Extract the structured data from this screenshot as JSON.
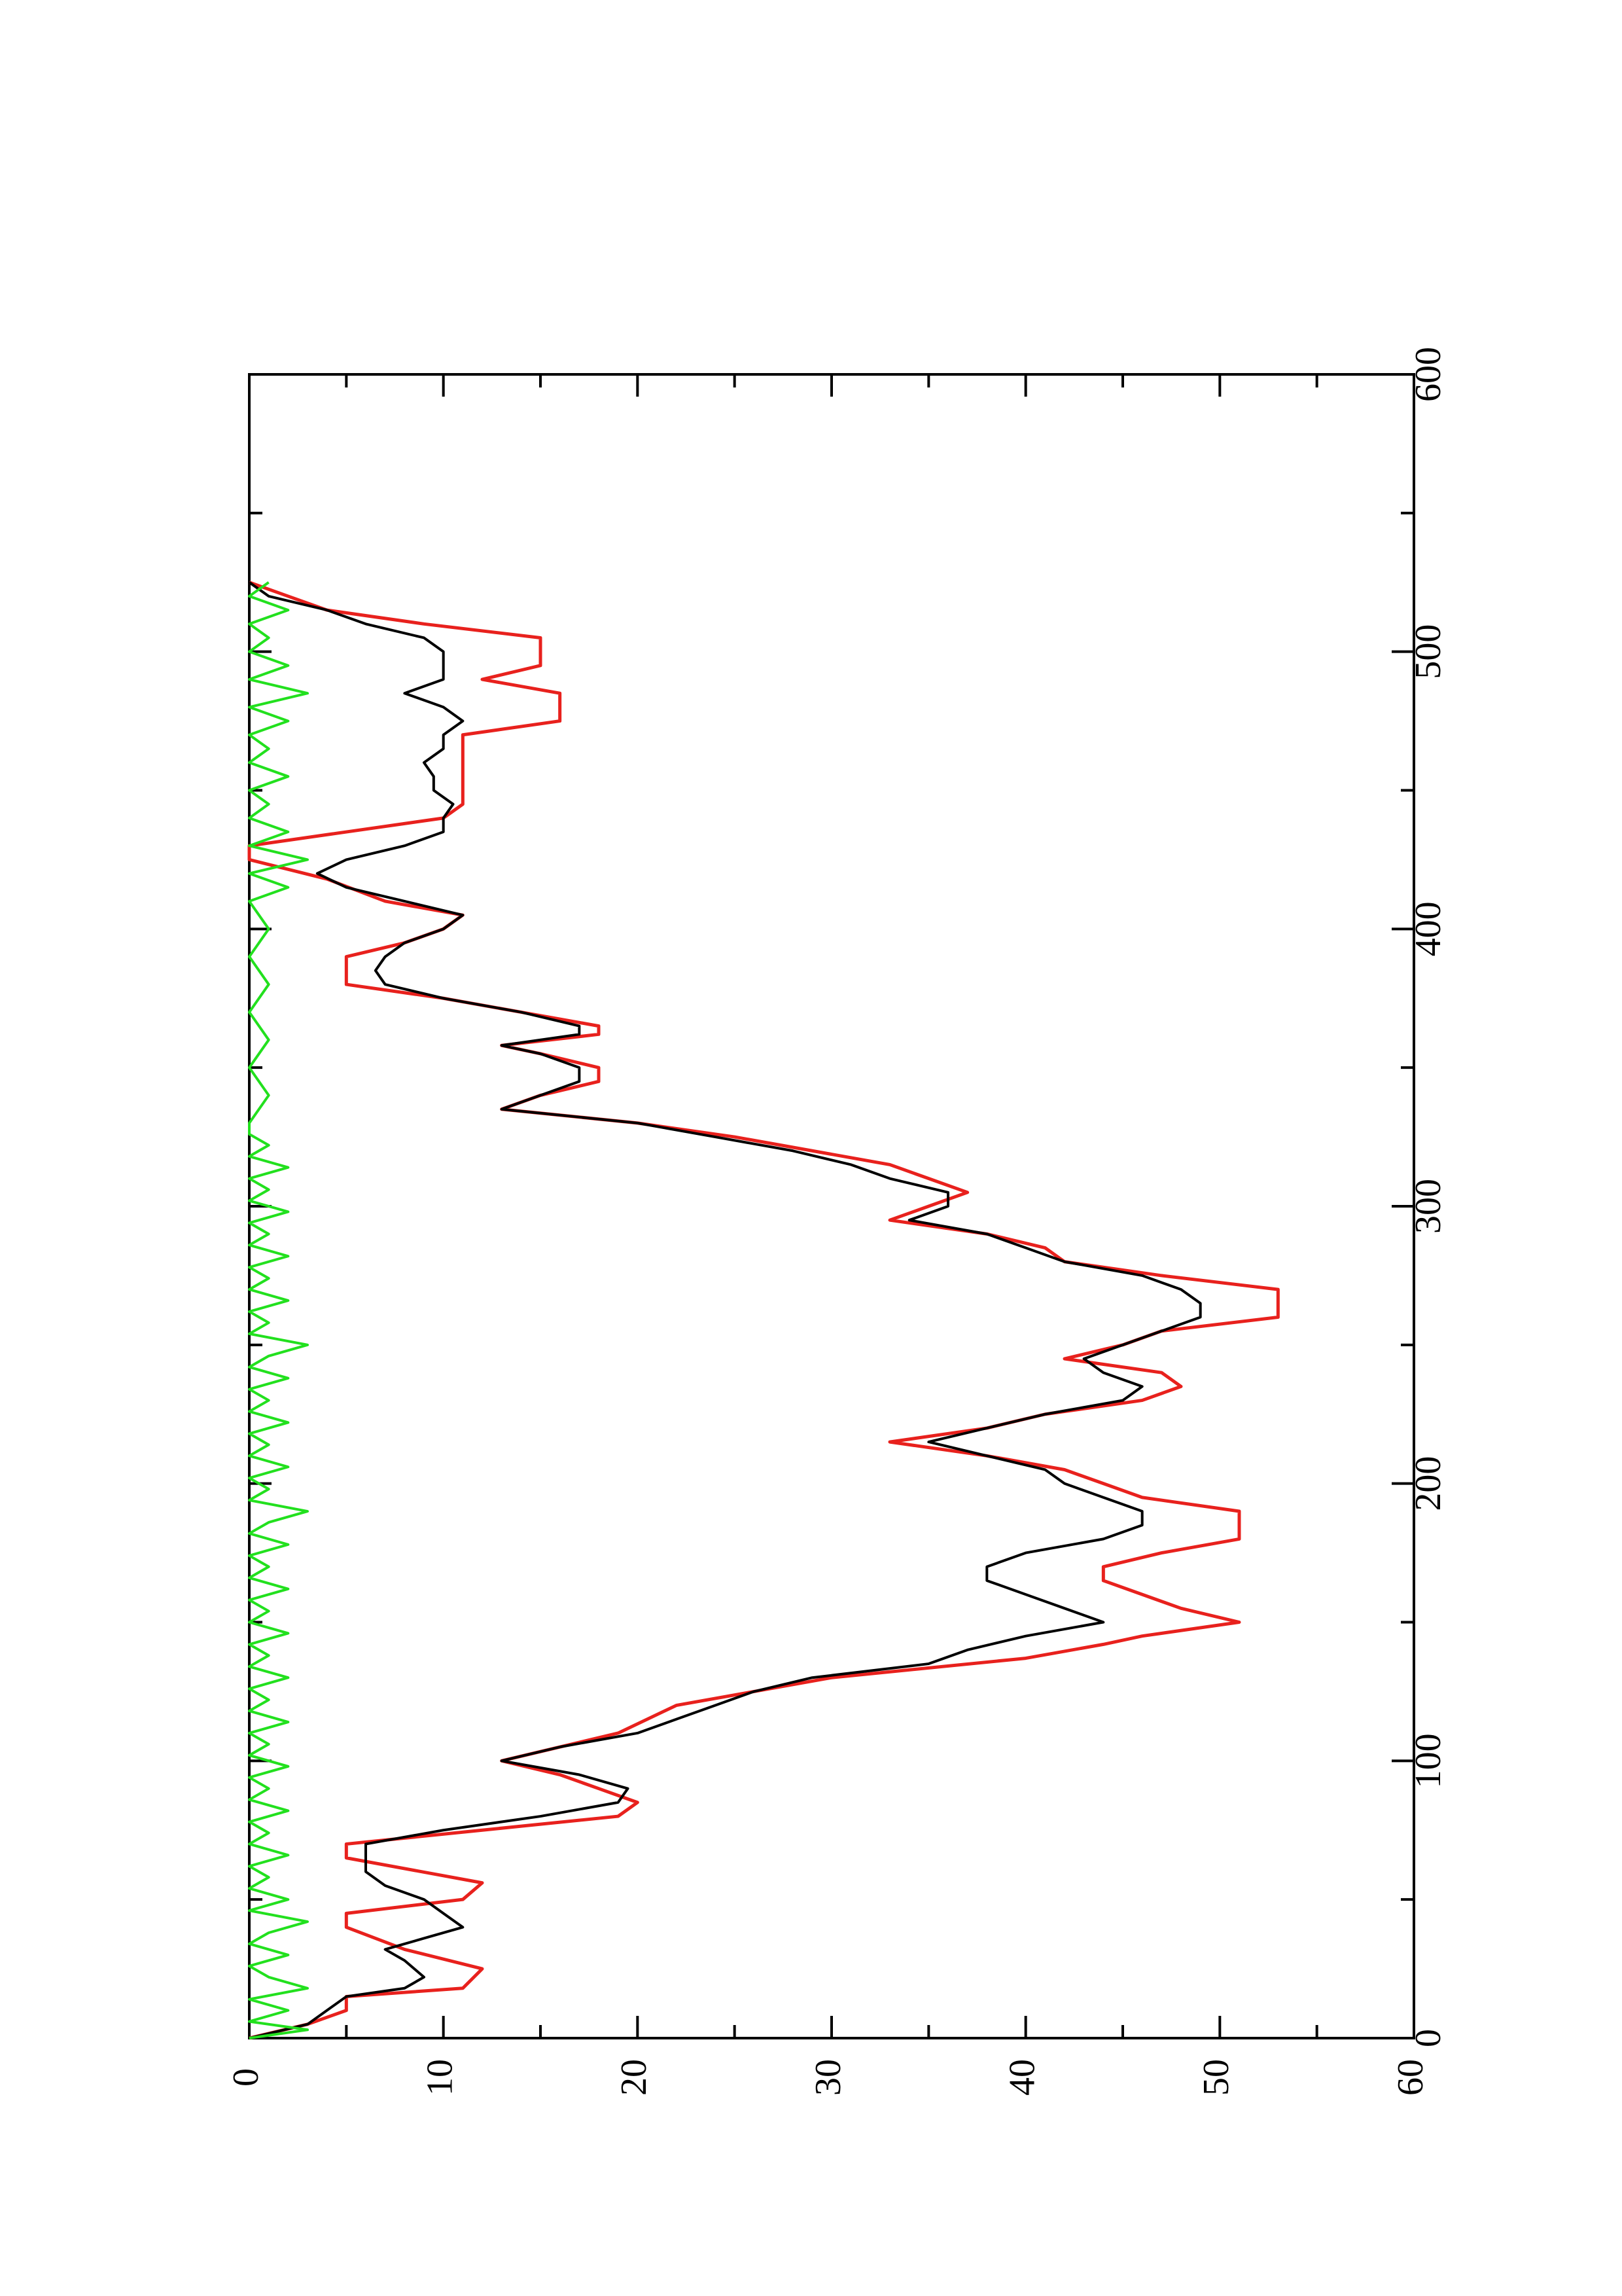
{
  "chart_data": {
    "type": "line",
    "orientation": "rotated 90 degrees counter-clockwise",
    "title": "",
    "xlabel": "",
    "ylabel": "",
    "xlim": [
      0,
      600
    ],
    "ylim": [
      0,
      60
    ],
    "x_ticks": [
      0,
      100,
      200,
      300,
      400,
      500,
      600
    ],
    "x_tick_labels": [
      "0",
      "100",
      "200",
      "300",
      "400",
      "500",
      "600"
    ],
    "x_minor_ticks": [
      50,
      150,
      250,
      350,
      450,
      550
    ],
    "y_ticks": [
      0,
      10,
      20,
      30,
      40,
      50,
      60
    ],
    "y_tick_labels": [
      "0",
      "10",
      "20",
      "30",
      "40",
      "50",
      "60"
    ],
    "y_minor_ticks": [
      5,
      15,
      25,
      35,
      45,
      55
    ],
    "grid": false,
    "legend": "none",
    "series": [
      {
        "color": "#e8211d",
        "style": "step",
        "points": [
          [
            0,
            0
          ],
          [
            5,
            3
          ],
          [
            10,
            5
          ],
          [
            15,
            5
          ],
          [
            18,
            11
          ],
          [
            25,
            12
          ],
          [
            32,
            8
          ],
          [
            40,
            5
          ],
          [
            45,
            5
          ],
          [
            50,
            11
          ],
          [
            56,
            12
          ],
          [
            65,
            5
          ],
          [
            70,
            5
          ],
          [
            75,
            12
          ],
          [
            80,
            19
          ],
          [
            85,
            20
          ],
          [
            90,
            18
          ],
          [
            95,
            16
          ],
          [
            100,
            13
          ],
          [
            105,
            16
          ],
          [
            110,
            19
          ],
          [
            120,
            22
          ],
          [
            125,
            26
          ],
          [
            130,
            30
          ],
          [
            137,
            40
          ],
          [
            142,
            44
          ],
          [
            145,
            46
          ],
          [
            150,
            51
          ],
          [
            155,
            48
          ],
          [
            160,
            46
          ],
          [
            165,
            44
          ],
          [
            170,
            44
          ],
          [
            175,
            47
          ],
          [
            180,
            51
          ],
          [
            190,
            51
          ],
          [
            195,
            46
          ],
          [
            200,
            44
          ],
          [
            205,
            42
          ],
          [
            210,
            38
          ],
          [
            215,
            33
          ],
          [
            220,
            38
          ],
          [
            225,
            41
          ],
          [
            230,
            46
          ],
          [
            235,
            48
          ],
          [
            240,
            47
          ],
          [
            245,
            42
          ],
          [
            250,
            45
          ],
          [
            255,
            47
          ],
          [
            260,
            53
          ],
          [
            270,
            53
          ],
          [
            275,
            47
          ],
          [
            280,
            42
          ],
          [
            285,
            41
          ],
          [
            290,
            38
          ],
          [
            295,
            33
          ],
          [
            300,
            35
          ],
          [
            305,
            37
          ],
          [
            310,
            35
          ],
          [
            315,
            33
          ],
          [
            320,
            29
          ],
          [
            325,
            25
          ],
          [
            330,
            20
          ],
          [
            335,
            13
          ],
          [
            340,
            15
          ],
          [
            345,
            18
          ],
          [
            350,
            18
          ],
          [
            355,
            15
          ],
          [
            358,
            13
          ],
          [
            362,
            18
          ],
          [
            365,
            18
          ],
          [
            370,
            14
          ],
          [
            375,
            10
          ],
          [
            380,
            5
          ],
          [
            390,
            5
          ],
          [
            395,
            8
          ],
          [
            400,
            10
          ],
          [
            405,
            11
          ],
          [
            410,
            7
          ],
          [
            418,
            4
          ],
          [
            425,
            0
          ],
          [
            430,
            0
          ],
          [
            435,
            5
          ],
          [
            440,
            10
          ],
          [
            445,
            11
          ],
          [
            460,
            11
          ],
          [
            470,
            11
          ],
          [
            475,
            16
          ],
          [
            485,
            16
          ],
          [
            490,
            12
          ],
          [
            495,
            15
          ],
          [
            505,
            15
          ],
          [
            510,
            9
          ],
          [
            515,
            4
          ],
          [
            520,
            2
          ],
          [
            525,
            0
          ]
        ]
      },
      {
        "color": "#000000",
        "style": "line",
        "points": [
          [
            0,
            0
          ],
          [
            5,
            3
          ],
          [
            10,
            4
          ],
          [
            15,
            5
          ],
          [
            18,
            8
          ],
          [
            22,
            9
          ],
          [
            28,
            8
          ],
          [
            32,
            7
          ],
          [
            36,
            9
          ],
          [
            40,
            11
          ],
          [
            45,
            10
          ],
          [
            50,
            9
          ],
          [
            55,
            7
          ],
          [
            60,
            6
          ],
          [
            70,
            6
          ],
          [
            75,
            10
          ],
          [
            80,
            15
          ],
          [
            85,
            19
          ],
          [
            90,
            19.5
          ],
          [
            95,
            17
          ],
          [
            100,
            13
          ],
          [
            105,
            16
          ],
          [
            110,
            20
          ],
          [
            115,
            22
          ],
          [
            120,
            24
          ],
          [
            125,
            26
          ],
          [
            130,
            29
          ],
          [
            135,
            35
          ],
          [
            140,
            37
          ],
          [
            145,
            40
          ],
          [
            150,
            44
          ],
          [
            155,
            42
          ],
          [
            160,
            40
          ],
          [
            165,
            38
          ],
          [
            170,
            38
          ],
          [
            175,
            40
          ],
          [
            180,
            44
          ],
          [
            185,
            46
          ],
          [
            190,
            46
          ],
          [
            195,
            44
          ],
          [
            200,
            42
          ],
          [
            205,
            41
          ],
          [
            210,
            38
          ],
          [
            215,
            35
          ],
          [
            220,
            38
          ],
          [
            225,
            41
          ],
          [
            230,
            45
          ],
          [
            235,
            46
          ],
          [
            240,
            44
          ],
          [
            245,
            43
          ],
          [
            250,
            45
          ],
          [
            255,
            47
          ],
          [
            260,
            49
          ],
          [
            265,
            49
          ],
          [
            270,
            48
          ],
          [
            275,
            46
          ],
          [
            280,
            42
          ],
          [
            285,
            40
          ],
          [
            290,
            38
          ],
          [
            295,
            34
          ],
          [
            300,
            36
          ],
          [
            305,
            36
          ],
          [
            310,
            33
          ],
          [
            315,
            31
          ],
          [
            320,
            28
          ],
          [
            325,
            24
          ],
          [
            330,
            20
          ],
          [
            335,
            13
          ],
          [
            340,
            15
          ],
          [
            345,
            17
          ],
          [
            350,
            17
          ],
          [
            355,
            15
          ],
          [
            358,
            13
          ],
          [
            362,
            17
          ],
          [
            365,
            17
          ],
          [
            370,
            14
          ],
          [
            375,
            10
          ],
          [
            380,
            7
          ],
          [
            385,
            6.5
          ],
          [
            390,
            7
          ],
          [
            395,
            8
          ],
          [
            400,
            10
          ],
          [
            405,
            11
          ],
          [
            410,
            8
          ],
          [
            415,
            5
          ],
          [
            420,
            3.5
          ],
          [
            425,
            5
          ],
          [
            430,
            8
          ],
          [
            435,
            10
          ],
          [
            440,
            10
          ],
          [
            445,
            10.5
          ],
          [
            450,
            9.5
          ],
          [
            455,
            9.5
          ],
          [
            460,
            9
          ],
          [
            465,
            10
          ],
          [
            470,
            10
          ],
          [
            475,
            11
          ],
          [
            480,
            10
          ],
          [
            485,
            8
          ],
          [
            490,
            10
          ],
          [
            495,
            10
          ],
          [
            500,
            10
          ],
          [
            505,
            9
          ],
          [
            510,
            6
          ],
          [
            515,
            4
          ],
          [
            520,
            1
          ],
          [
            525,
            0
          ]
        ]
      },
      {
        "color": "#22e01e",
        "style": "noisy baseline",
        "points": [
          [
            0,
            0
          ],
          [
            3,
            3
          ],
          [
            6,
            0
          ],
          [
            10,
            2
          ],
          [
            14,
            0
          ],
          [
            18,
            3
          ],
          [
            22,
            1
          ],
          [
            26,
            0
          ],
          [
            30,
            2
          ],
          [
            34,
            0
          ],
          [
            38,
            1
          ],
          [
            42,
            3
          ],
          [
            46,
            0
          ],
          [
            50,
            2
          ],
          [
            54,
            0
          ],
          [
            58,
            1
          ],
          [
            62,
            0
          ],
          [
            66,
            2
          ],
          [
            70,
            0
          ],
          [
            74,
            1
          ],
          [
            78,
            0
          ],
          [
            82,
            2
          ],
          [
            86,
            0
          ],
          [
            90,
            1
          ],
          [
            94,
            0
          ],
          [
            98,
            2
          ],
          [
            102,
            0
          ],
          [
            106,
            1
          ],
          [
            110,
            0
          ],
          [
            114,
            2
          ],
          [
            118,
            0
          ],
          [
            122,
            1
          ],
          [
            126,
            0
          ],
          [
            130,
            2
          ],
          [
            134,
            0
          ],
          [
            138,
            1
          ],
          [
            142,
            0
          ],
          [
            146,
            2
          ],
          [
            150,
            0
          ],
          [
            154,
            1
          ],
          [
            158,
            0
          ],
          [
            162,
            2
          ],
          [
            166,
            0
          ],
          [
            170,
            1
          ],
          [
            174,
            0
          ],
          [
            178,
            2
          ],
          [
            182,
            0
          ],
          [
            186,
            1
          ],
          [
            190,
            3
          ],
          [
            194,
            0
          ],
          [
            198,
            1
          ],
          [
            202,
            0
          ],
          [
            206,
            2
          ],
          [
            210,
            0
          ],
          [
            214,
            1
          ],
          [
            218,
            0
          ],
          [
            222,
            2
          ],
          [
            226,
            0
          ],
          [
            230,
            1
          ],
          [
            234,
            0
          ],
          [
            238,
            2
          ],
          [
            242,
            0
          ],
          [
            246,
            1
          ],
          [
            250,
            3
          ],
          [
            254,
            0
          ],
          [
            258,
            1
          ],
          [
            262,
            0
          ],
          [
            266,
            2
          ],
          [
            270,
            0
          ],
          [
            274,
            1
          ],
          [
            278,
            0
          ],
          [
            282,
            2
          ],
          [
            286,
            0
          ],
          [
            290,
            1
          ],
          [
            294,
            0
          ],
          [
            298,
            2
          ],
          [
            302,
            0
          ],
          [
            306,
            1
          ],
          [
            310,
            0
          ],
          [
            314,
            2
          ],
          [
            318,
            0
          ],
          [
            322,
            1
          ],
          [
            326,
            0
          ],
          [
            330,
            0
          ],
          [
            340,
            1
          ],
          [
            350,
            0
          ],
          [
            360,
            1
          ],
          [
            370,
            0
          ],
          [
            380,
            1
          ],
          [
            390,
            0
          ],
          [
            400,
            1
          ],
          [
            410,
            0
          ],
          [
            415,
            2
          ],
          [
            420,
            0
          ],
          [
            425,
            3
          ],
          [
            430,
            0
          ],
          [
            435,
            2
          ],
          [
            440,
            0
          ],
          [
            445,
            1
          ],
          [
            450,
            0
          ],
          [
            455,
            2
          ],
          [
            460,
            0
          ],
          [
            465,
            1
          ],
          [
            470,
            0
          ],
          [
            475,
            2
          ],
          [
            480,
            0
          ],
          [
            485,
            3
          ],
          [
            490,
            0
          ],
          [
            495,
            2
          ],
          [
            500,
            0
          ],
          [
            505,
            1
          ],
          [
            510,
            0
          ],
          [
            515,
            2
          ],
          [
            520,
            0
          ],
          [
            525,
            1
          ]
        ]
      }
    ]
  }
}
